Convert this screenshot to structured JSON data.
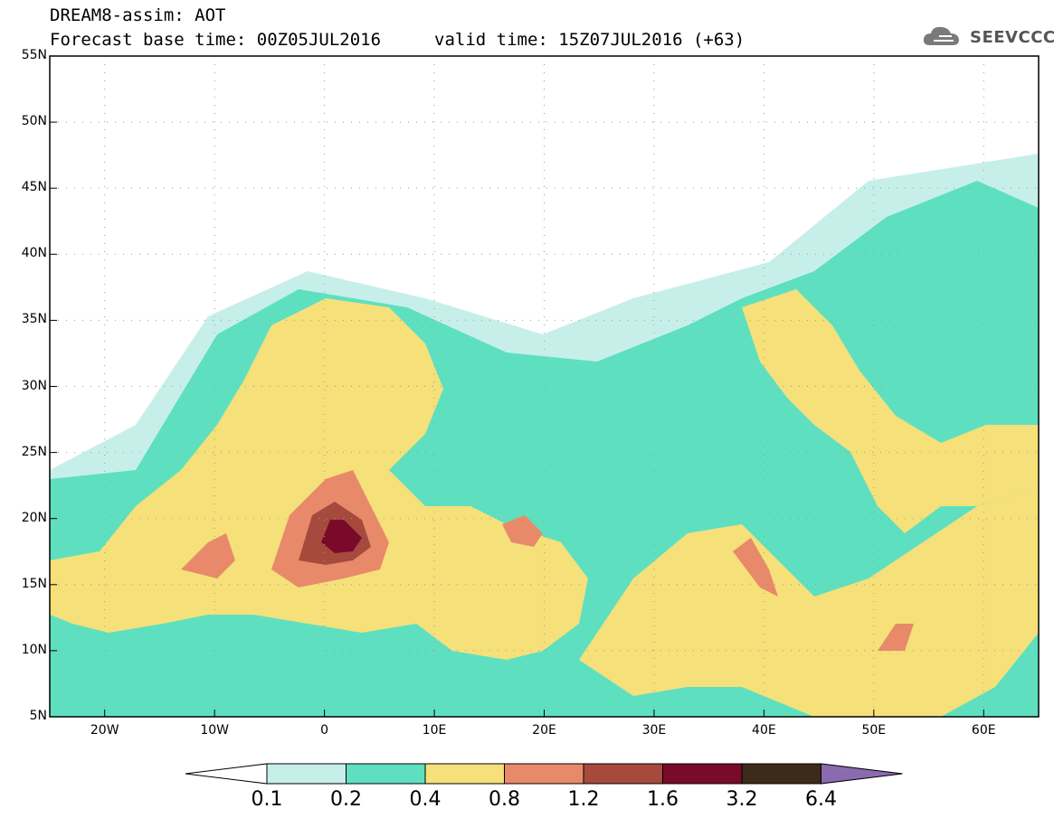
{
  "header": {
    "title": "DREAM8-assim: AOT",
    "base_time": "Forecast base time: 00Z05JUL2016",
    "valid_time": "valid time: 15Z07JUL2016 (+63)",
    "logo_text": "SEEVCCC"
  },
  "map": {
    "projection": "lat-lon",
    "lon_range": [
      -25,
      65
    ],
    "lat_range": [
      5,
      55
    ],
    "lat_labels": [
      "55N",
      "50N",
      "45N",
      "40N",
      "35N",
      "30N",
      "25N",
      "20N",
      "15N",
      "10N",
      "5N"
    ],
    "lon_labels": [
      "20W",
      "10W",
      "0",
      "10E",
      "20E",
      "30E",
      "40E",
      "50E",
      "60E"
    ],
    "grid": "dotted"
  },
  "legend": {
    "labels": [
      "0.1",
      "0.2",
      "0.4",
      "0.8",
      "1.2",
      "1.6",
      "3.2",
      "6.4"
    ],
    "colors": [
      "#ffffff",
      "#c7efea",
      "#5ee0c0",
      "#f5e07a",
      "#e88a6a",
      "#a64a3e",
      "#7a0a2a",
      "#3d2a1a",
      "#8b6bb0"
    ]
  },
  "colors": {
    "c02": "#c7efea",
    "c04": "#5ee0c0",
    "c08": "#f5e07a",
    "c12": "#e88a6a",
    "c16": "#a64a3e",
    "c32": "#7a0a2a"
  }
}
